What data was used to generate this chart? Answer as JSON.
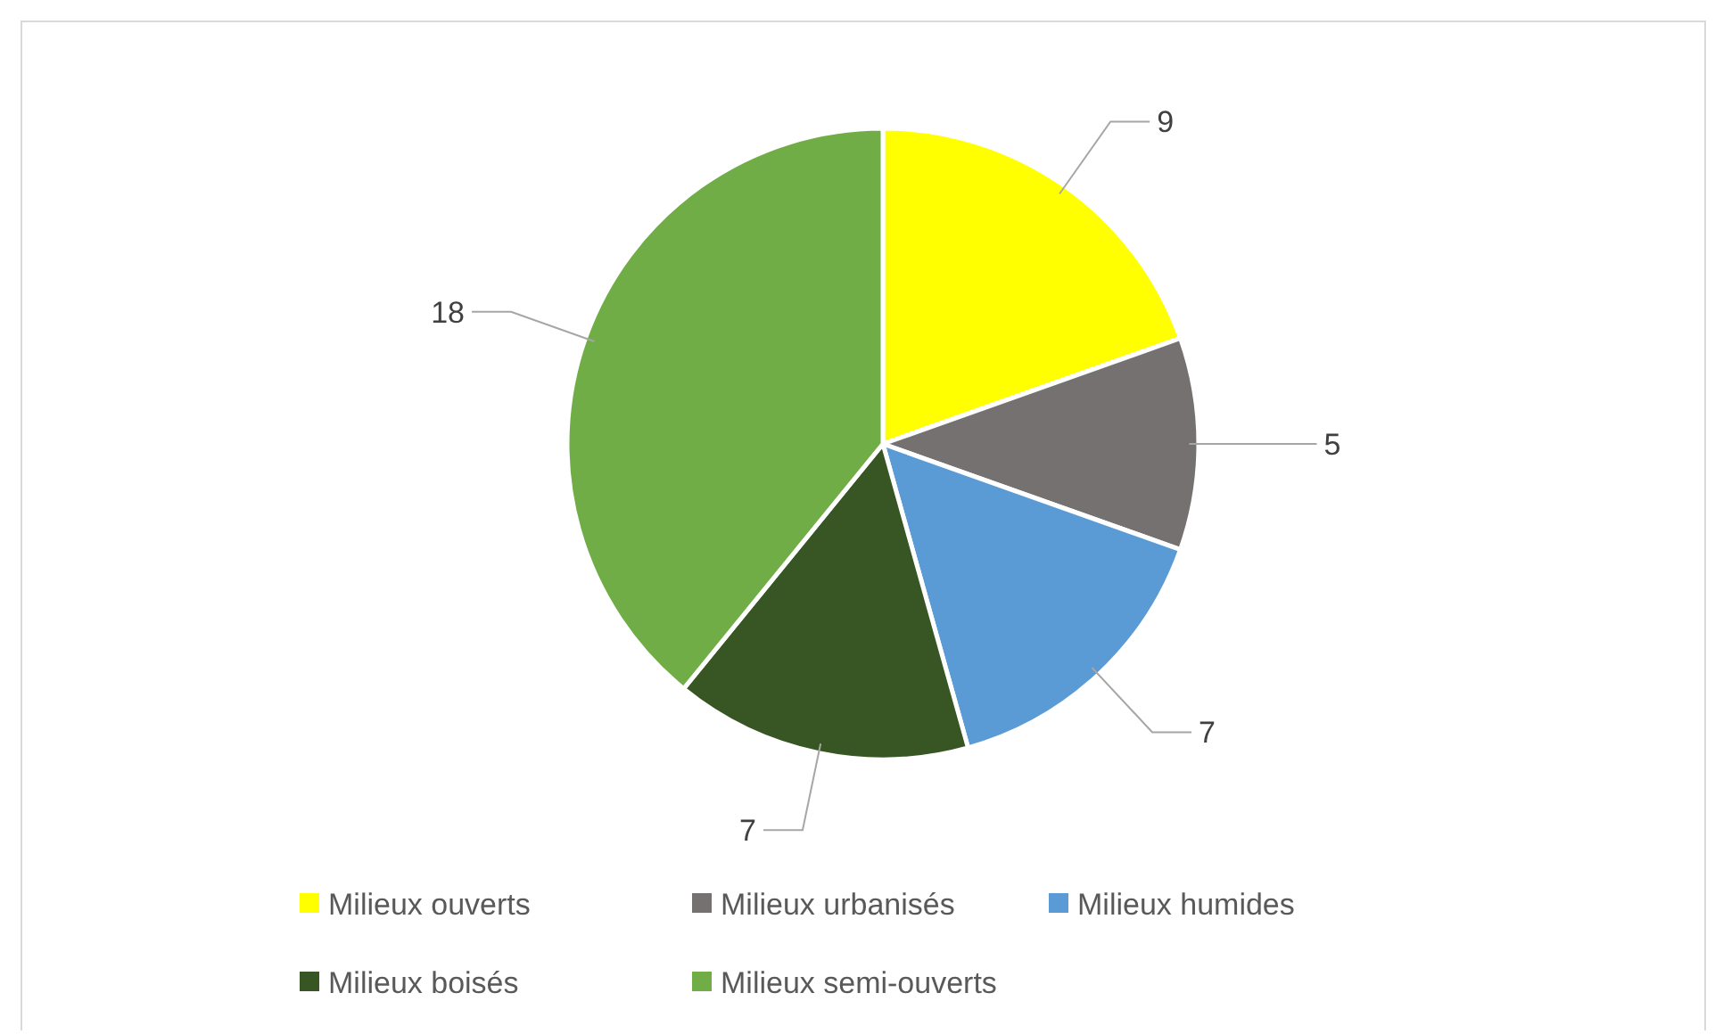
{
  "chart_data": {
    "type": "pie",
    "categories": [
      "Milieux ouverts",
      "Milieux urbanisés",
      "Milieux humides",
      "Milieux boisés",
      "Milieux semi-ouverts"
    ],
    "values": [
      9,
      5,
      7,
      7,
      18
    ],
    "colors": [
      "#ffff00",
      "#767171",
      "#5b9bd5",
      "#375623",
      "#70ad47"
    ],
    "data_labels": true,
    "legend": "bottom"
  }
}
